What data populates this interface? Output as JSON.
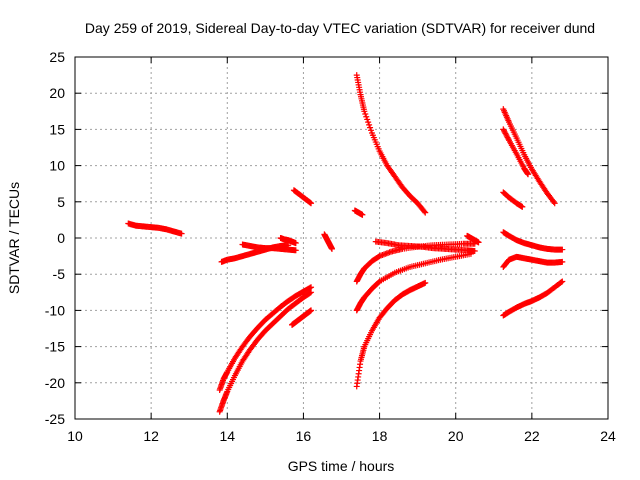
{
  "chart_data": {
    "type": "scatter",
    "title": "Day 259 of 2019, Sidereal Day-to-day VTEC variation (SDTVAR) for receiver dund",
    "xlabel": "GPS time / hours",
    "ylabel": "SDTVAR / TECUs",
    "xlim": [
      10,
      24
    ],
    "ylim": [
      -25,
      25
    ],
    "xticks": [
      "10",
      "12",
      "14",
      "16",
      "18",
      "20",
      "22",
      "24"
    ],
    "yticks": [
      "25",
      "20",
      "15",
      "10",
      "5",
      "0",
      "-5",
      "-10",
      "-15",
      "-20",
      "-25"
    ],
    "grid": true,
    "marker": "plus",
    "color": "#ff0000",
    "series": [
      {
        "x": [
          11.4,
          11.6,
          11.8,
          12.0,
          12.2,
          12.4,
          12.6,
          12.8
        ],
        "y": [
          2.0,
          1.7,
          1.6,
          1.5,
          1.4,
          1.2,
          0.9,
          0.6
        ]
      },
      {
        "x": [
          13.85,
          14.0,
          14.2,
          14.4,
          14.6,
          14.8,
          15.0,
          15.2,
          15.4,
          15.6
        ],
        "y": [
          -3.3,
          -3.0,
          -2.8,
          -2.5,
          -2.2,
          -1.9,
          -1.6,
          -1.3,
          -1.1,
          -1.0
        ]
      },
      {
        "x": [
          14.4,
          14.6,
          14.8,
          15.0,
          15.2,
          15.4,
          15.6,
          15.8
        ],
        "y": [
          -0.9,
          -1.1,
          -1.3,
          -1.4,
          -1.4,
          -1.5,
          -1.6,
          -1.7
        ]
      },
      {
        "x": [
          15.4,
          15.5,
          15.6,
          15.7,
          15.8
        ],
        "y": [
          0.0,
          -0.2,
          -0.3,
          -0.5,
          -0.7
        ]
      },
      {
        "x": [
          15.75,
          15.9,
          16.05,
          16.2
        ],
        "y": [
          6.6,
          6.0,
          5.4,
          4.8
        ]
      },
      {
        "x": [
          16.55,
          16.6,
          16.65,
          16.7,
          16.75
        ],
        "y": [
          0.5,
          0.0,
          -0.5,
          -1.0,
          -1.5
        ]
      },
      {
        "x": [
          13.8,
          13.9,
          14.0,
          14.2,
          14.4,
          14.6,
          14.8,
          15.0,
          15.2,
          15.4,
          15.6,
          15.8,
          16.0,
          16.2
        ],
        "y": [
          -21.0,
          -19.5,
          -18.5,
          -16.6,
          -15.0,
          -13.6,
          -12.4,
          -11.3,
          -10.4,
          -9.5,
          -8.7,
          -8.0,
          -7.4,
          -6.8
        ]
      },
      {
        "x": [
          13.8,
          13.9,
          14.0,
          14.2,
          14.4,
          14.6,
          14.8,
          15.0,
          15.2,
          15.4,
          15.6,
          15.8,
          16.0,
          16.2
        ],
        "y": [
          -24.0,
          -22.5,
          -21.2,
          -19.0,
          -17.0,
          -15.4,
          -14.0,
          -12.8,
          -11.8,
          -10.8,
          -9.8,
          -9.0,
          -8.2,
          -7.5
        ]
      },
      {
        "x": [
          15.7,
          15.8,
          15.9,
          16.0,
          16.1,
          16.2
        ],
        "y": [
          -12.0,
          -11.6,
          -11.2,
          -10.8,
          -10.4,
          -10.0
        ]
      },
      {
        "x": [
          17.4,
          17.5,
          17.6,
          17.8,
          18.0,
          18.2,
          18.4,
          18.6,
          18.8,
          19.0,
          19.2
        ],
        "y": [
          22.5,
          19.8,
          17.5,
          14.5,
          12.0,
          10.0,
          8.5,
          7.0,
          5.8,
          4.8,
          3.5
        ]
      },
      {
        "x": [
          17.35,
          17.45,
          17.55
        ],
        "y": [
          3.8,
          3.5,
          3.2
        ]
      },
      {
        "x": [
          17.4,
          17.5,
          17.6,
          17.8,
          18.0,
          18.2,
          18.4,
          18.6,
          18.8,
          19.0,
          19.2
        ],
        "y": [
          -20.5,
          -17.0,
          -15.0,
          -12.8,
          -11.0,
          -9.7,
          -8.6,
          -7.8,
          -7.2,
          -6.7,
          -6.2
        ]
      },
      {
        "x": [
          17.4,
          17.5,
          17.6,
          17.8,
          18.0,
          18.4,
          18.8,
          19.2,
          19.6,
          20.0,
          20.4
        ],
        "y": [
          -10.0,
          -9.0,
          -8.2,
          -7.0,
          -6.0,
          -4.8,
          -4.0,
          -3.5,
          -3.0,
          -2.6,
          -2.2
        ]
      },
      {
        "x": [
          17.4,
          17.5,
          17.6,
          17.8,
          18.0,
          18.3,
          18.6,
          19.0,
          19.4,
          19.8,
          20.2,
          20.5
        ],
        "y": [
          -6.0,
          -5.0,
          -4.2,
          -3.2,
          -2.5,
          -1.9,
          -1.5,
          -1.2,
          -1.0,
          -0.9,
          -0.8,
          -0.8
        ]
      },
      {
        "x": [
          17.9,
          18.2,
          18.5,
          18.8,
          19.1,
          19.4,
          19.7,
          20.0,
          20.3,
          20.5
        ],
        "y": [
          -0.5,
          -0.7,
          -1.0,
          -1.1,
          -1.2,
          -1.4,
          -1.5,
          -1.6,
          -1.7,
          -1.8
        ]
      },
      {
        "x": [
          20.3,
          20.4,
          20.5,
          20.6
        ],
        "y": [
          0.3,
          0.0,
          -0.3,
          -0.6
        ]
      },
      {
        "x": [
          21.25,
          21.4,
          21.6,
          21.8,
          22.0,
          22.2,
          22.4,
          22.6
        ],
        "y": [
          17.8,
          16.0,
          13.8,
          11.5,
          9.5,
          7.8,
          6.2,
          4.8
        ]
      },
      {
        "x": [
          21.25,
          21.4,
          21.6,
          21.8,
          21.9
        ],
        "y": [
          15.0,
          13.5,
          11.6,
          9.6,
          8.8
        ]
      },
      {
        "x": [
          21.25,
          21.4,
          21.6,
          21.75
        ],
        "y": [
          6.3,
          5.6,
          4.8,
          4.3
        ]
      },
      {
        "x": [
          21.25,
          21.4,
          21.6,
          21.8,
          22.0,
          22.2,
          22.4,
          22.6,
          22.8
        ],
        "y": [
          0.8,
          0.3,
          -0.3,
          -0.7,
          -1.0,
          -1.3,
          -1.5,
          -1.6,
          -1.6
        ]
      },
      {
        "x": [
          21.25,
          21.4,
          21.6,
          21.8,
          22.0,
          22.2,
          22.4,
          22.6,
          22.8
        ],
        "y": [
          -4.0,
          -3.0,
          -2.6,
          -2.8,
          -3.0,
          -3.2,
          -3.4,
          -3.4,
          -3.3
        ]
      },
      {
        "x": [
          21.25,
          21.4,
          21.6,
          21.8,
          22.0,
          22.2,
          22.4,
          22.6,
          22.8
        ],
        "y": [
          -10.7,
          -10.2,
          -9.6,
          -9.1,
          -8.7,
          -8.2,
          -7.6,
          -6.8,
          -6.0
        ]
      }
    ]
  }
}
